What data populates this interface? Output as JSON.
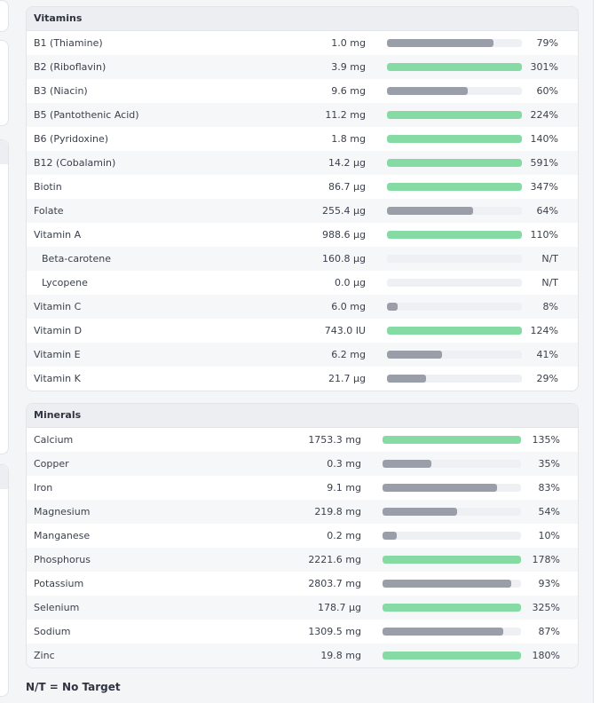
{
  "colors": {
    "over": "#86dba4",
    "under": "#9a9ea9",
    "track": "#eef0f4"
  },
  "vitamins": {
    "title": "Vitamins",
    "rows": [
      {
        "name": "B1 (Thiamine)",
        "amount": "1.0 mg",
        "percent": "79%",
        "fill": 0.79,
        "met": false
      },
      {
        "name": "B2 (Riboflavin)",
        "amount": "3.9 mg",
        "percent": "301%",
        "fill": 1.0,
        "met": true
      },
      {
        "name": "B3 (Niacin)",
        "amount": "9.6 mg",
        "percent": "60%",
        "fill": 0.6,
        "met": false
      },
      {
        "name": "B5 (Pantothenic Acid)",
        "amount": "11.2 mg",
        "percent": "224%",
        "fill": 1.0,
        "met": true
      },
      {
        "name": "B6 (Pyridoxine)",
        "amount": "1.8 mg",
        "percent": "140%",
        "fill": 1.0,
        "met": true
      },
      {
        "name": "B12 (Cobalamin)",
        "amount": "14.2 µg",
        "percent": "591%",
        "fill": 1.0,
        "met": true
      },
      {
        "name": "Biotin",
        "amount": "86.7 µg",
        "percent": "347%",
        "fill": 1.0,
        "met": true
      },
      {
        "name": "Folate",
        "amount": "255.4 µg",
        "percent": "64%",
        "fill": 0.64,
        "met": false
      },
      {
        "name": "Vitamin A",
        "amount": "988.6 µg",
        "percent": "110%",
        "fill": 1.0,
        "met": true
      },
      {
        "name": "Beta-carotene",
        "amount": "160.8 µg",
        "percent": "N/T",
        "fill": 0,
        "met": false,
        "sub": true
      },
      {
        "name": "Lycopene",
        "amount": "0.0 µg",
        "percent": "N/T",
        "fill": 0,
        "met": false,
        "sub": true
      },
      {
        "name": "Vitamin C",
        "amount": "6.0 mg",
        "percent": "8%",
        "fill": 0.08,
        "met": false
      },
      {
        "name": "Vitamin D",
        "amount": "743.0 IU",
        "percent": "124%",
        "fill": 1.0,
        "met": true
      },
      {
        "name": "Vitamin E",
        "amount": "6.2 mg",
        "percent": "41%",
        "fill": 0.41,
        "met": false
      },
      {
        "name": "Vitamin K",
        "amount": "21.7 µg",
        "percent": "29%",
        "fill": 0.29,
        "met": false
      }
    ]
  },
  "minerals": {
    "title": "Minerals",
    "rows": [
      {
        "name": "Calcium",
        "amount": "1753.3 mg",
        "percent": "135%",
        "fill": 1.0,
        "met": true
      },
      {
        "name": "Copper",
        "amount": "0.3 mg",
        "percent": "35%",
        "fill": 0.35,
        "met": false
      },
      {
        "name": "Iron",
        "amount": "9.1 mg",
        "percent": "83%",
        "fill": 0.83,
        "met": false
      },
      {
        "name": "Magnesium",
        "amount": "219.8 mg",
        "percent": "54%",
        "fill": 0.54,
        "met": false
      },
      {
        "name": "Manganese",
        "amount": "0.2 mg",
        "percent": "10%",
        "fill": 0.1,
        "met": false
      },
      {
        "name": "Phosphorus",
        "amount": "2221.6 mg",
        "percent": "178%",
        "fill": 1.0,
        "met": true
      },
      {
        "name": "Potassium",
        "amount": "2803.7 mg",
        "percent": "93%",
        "fill": 0.93,
        "met": false
      },
      {
        "name": "Selenium",
        "amount": "178.7 µg",
        "percent": "325%",
        "fill": 1.0,
        "met": true
      },
      {
        "name": "Sodium",
        "amount": "1309.5 mg",
        "percent": "87%",
        "fill": 0.87,
        "met": false
      },
      {
        "name": "Zinc",
        "amount": "19.8 mg",
        "percent": "180%",
        "fill": 1.0,
        "met": true
      }
    ]
  },
  "footnote": "N/T = No Target"
}
